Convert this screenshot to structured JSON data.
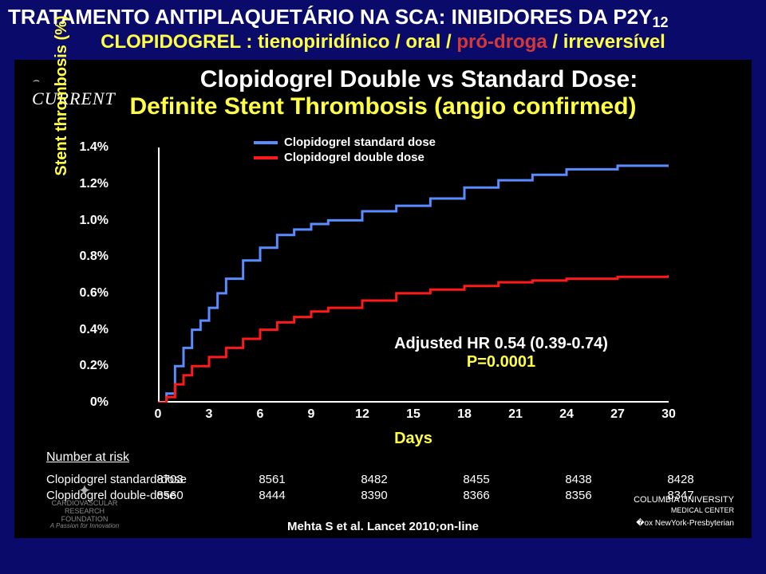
{
  "header": {
    "line1_a": "TRATAMENTO ANTIPLAQUETÁRIO NA SCA: INIBIDORES DA P2Y",
    "line1_sub": "12",
    "line2_a": "CLOPIDOGREL : tienopiridínico / oral / ",
    "line2_b": "pró-droga",
    "line2_c": " / irreversível"
  },
  "panel": {
    "logo": "CURRENT",
    "title1": "Clopidogrel Double vs Standard Dose:",
    "title2": "Definite Stent Thrombosis (angio confirmed)"
  },
  "chart": {
    "type": "step-line",
    "y_label": "Stent thrombosis (%)",
    "x_label": "Days",
    "ylim": [
      0,
      1.4
    ],
    "xlim": [
      0,
      30
    ],
    "y_ticks": [
      "1.4%",
      "1.2%",
      "1.0%",
      "0.8%",
      "0.6%",
      "0.4%",
      "0.2%",
      "0%"
    ],
    "y_tick_vals": [
      1.4,
      1.2,
      1.0,
      0.8,
      0.6,
      0.4,
      0.2,
      0
    ],
    "x_ticks": [
      "0",
      "3",
      "6",
      "9",
      "12",
      "15",
      "18",
      "21",
      "24",
      "27",
      "30"
    ],
    "x_tick_vals": [
      0,
      3,
      6,
      9,
      12,
      15,
      18,
      21,
      24,
      27,
      30
    ],
    "line_width": 3,
    "background_color": "#000000",
    "axis_color": "#ffffff",
    "tick_fontsize": 16,
    "label_fontsize": 20,
    "series": [
      {
        "name": "Clopidogrel standard dose",
        "color": "#5b8cff",
        "points": [
          [
            0,
            0
          ],
          [
            0.5,
            0.05
          ],
          [
            1,
            0.2
          ],
          [
            1.5,
            0.3
          ],
          [
            2,
            0.4
          ],
          [
            2.5,
            0.45
          ],
          [
            3,
            0.52
          ],
          [
            3.5,
            0.6
          ],
          [
            4,
            0.68
          ],
          [
            5,
            0.78
          ],
          [
            6,
            0.85
          ],
          [
            7,
            0.92
          ],
          [
            8,
            0.95
          ],
          [
            9,
            0.98
          ],
          [
            10,
            1.0
          ],
          [
            12,
            1.05
          ],
          [
            14,
            1.08
          ],
          [
            16,
            1.12
          ],
          [
            18,
            1.18
          ],
          [
            20,
            1.22
          ],
          [
            22,
            1.25
          ],
          [
            24,
            1.28
          ],
          [
            27,
            1.3
          ],
          [
            30,
            1.3
          ]
        ]
      },
      {
        "name": "Clopidogrel double dose",
        "color": "#ff1a1a",
        "points": [
          [
            0,
            0
          ],
          [
            0.5,
            0.03
          ],
          [
            1,
            0.1
          ],
          [
            1.5,
            0.15
          ],
          [
            2,
            0.2
          ],
          [
            3,
            0.25
          ],
          [
            4,
            0.3
          ],
          [
            5,
            0.35
          ],
          [
            6,
            0.4
          ],
          [
            7,
            0.44
          ],
          [
            8,
            0.47
          ],
          [
            9,
            0.5
          ],
          [
            10,
            0.52
          ],
          [
            12,
            0.56
          ],
          [
            14,
            0.6
          ],
          [
            16,
            0.62
          ],
          [
            18,
            0.64
          ],
          [
            20,
            0.66
          ],
          [
            22,
            0.67
          ],
          [
            24,
            0.68
          ],
          [
            27,
            0.69
          ],
          [
            30,
            0.7
          ]
        ]
      }
    ],
    "legend": {
      "items": [
        {
          "label": "Clopidogrel standard dose",
          "color": "#5b8cff"
        },
        {
          "label": "Clopidogrel double dose",
          "color": "#ff1a1a"
        }
      ]
    },
    "hr_text": "Adjusted HR 0.54 (0.39-0.74)",
    "p_text": "P=0.0001"
  },
  "nar": {
    "label": "Number at risk",
    "rows": [
      {
        "name": "Clopidogrel standard-dose",
        "vals": [
          "8703",
          "8561",
          "8482",
          "8455",
          "8438",
          "8428"
        ]
      },
      {
        "name": "Clopidogrel double-dose",
        "vals": [
          "8560",
          "8444",
          "8390",
          "8366",
          "8356",
          "8347"
        ]
      }
    ],
    "val_x": [
      0,
      6,
      12,
      18,
      24,
      30
    ]
  },
  "footer": {
    "citation": "Mehta S et al. Lancet 2010;on-line",
    "logo_left_l1": "CARDIOVASCULAR RESEARCH",
    "logo_left_l2": "FOUNDATION",
    "logo_left_l3": "A Passion for Innovation",
    "logo_right_l1": "COLUMBIA UNIVERSITY",
    "logo_right_l2": "MEDICAL CENTER",
    "logo_right_l3": "�ox NewYork-Presbyterian"
  }
}
